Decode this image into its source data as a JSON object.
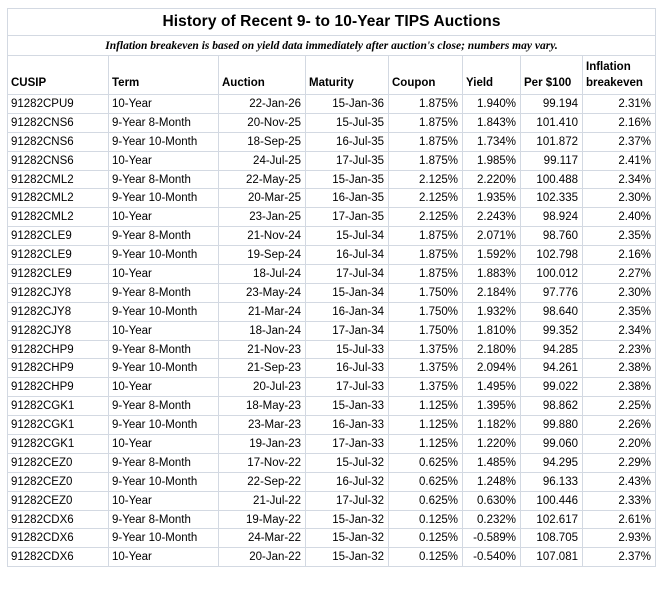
{
  "table": {
    "title": "History of Recent 9- to 10-Year TIPS Auctions",
    "subtitle": "Inflation breakeven is based on yield data immediately after auction's close; numbers may vary.",
    "columns": [
      {
        "key": "cusip",
        "label": "CUSIP",
        "align": "left"
      },
      {
        "key": "term",
        "label": "Term",
        "align": "left"
      },
      {
        "key": "auction",
        "label": "Auction",
        "align": "right"
      },
      {
        "key": "maturity",
        "label": "Maturity",
        "align": "right"
      },
      {
        "key": "coupon",
        "label": "Coupon",
        "align": "right"
      },
      {
        "key": "yield",
        "label": "Yield",
        "align": "right"
      },
      {
        "key": "per100",
        "label": "Per $100",
        "align": "right"
      },
      {
        "key": "breakeven",
        "label": "Inflation breakeven",
        "align": "right"
      }
    ],
    "rows": [
      {
        "cusip": "91282CPU9",
        "term": "10-Year",
        "auction": "22-Jan-26",
        "maturity": "15-Jan-36",
        "coupon": "1.875%",
        "yield": "1.940%",
        "per100": "99.194",
        "breakeven": "2.31%"
      },
      {
        "cusip": "91282CNS6",
        "term": "9-Year 8-Month",
        "auction": "20-Nov-25",
        "maturity": "15-Jul-35",
        "coupon": "1.875%",
        "yield": "1.843%",
        "per100": "101.410",
        "breakeven": "2.16%"
      },
      {
        "cusip": "91282CNS6",
        "term": "9-Year 10-Month",
        "auction": "18-Sep-25",
        "maturity": "16-Jul-35",
        "coupon": "1.875%",
        "yield": "1.734%",
        "per100": "101.872",
        "breakeven": "2.37%"
      },
      {
        "cusip": "91282CNS6",
        "term": "10-Year",
        "auction": "24-Jul-25",
        "maturity": "17-Jul-35",
        "coupon": "1.875%",
        "yield": "1.985%",
        "per100": "99.117",
        "breakeven": "2.41%"
      },
      {
        "cusip": "91282CML2",
        "term": "9-Year 8-Month",
        "auction": "22-May-25",
        "maturity": "15-Jan-35",
        "coupon": "2.125%",
        "yield": "2.220%",
        "per100": "100.488",
        "breakeven": "2.34%"
      },
      {
        "cusip": "91282CML2",
        "term": "9-Year 10-Month",
        "auction": "20-Mar-25",
        "maturity": "16-Jan-35",
        "coupon": "2.125%",
        "yield": "1.935%",
        "per100": "102.335",
        "breakeven": "2.30%"
      },
      {
        "cusip": "91282CML2",
        "term": "10-Year",
        "auction": "23-Jan-25",
        "maturity": "17-Jan-35",
        "coupon": "2.125%",
        "yield": "2.243%",
        "per100": "98.924",
        "breakeven": "2.40%"
      },
      {
        "cusip": "91282CLE9",
        "term": "9-Year 8-Month",
        "auction": "21-Nov-24",
        "maturity": "15-Jul-34",
        "coupon": "1.875%",
        "yield": "2.071%",
        "per100": "98.760",
        "breakeven": "2.35%"
      },
      {
        "cusip": "91282CLE9",
        "term": "9-Year 10-Month",
        "auction": "19-Sep-24",
        "maturity": "16-Jul-34",
        "coupon": "1.875%",
        "yield": "1.592%",
        "per100": "102.798",
        "breakeven": "2.16%"
      },
      {
        "cusip": "91282CLE9",
        "term": "10-Year",
        "auction": "18-Jul-24",
        "maturity": "17-Jul-34",
        "coupon": "1.875%",
        "yield": "1.883%",
        "per100": "100.012",
        "breakeven": "2.27%"
      },
      {
        "cusip": "91282CJY8",
        "term": "9-Year 8-Month",
        "auction": "23-May-24",
        "maturity": "15-Jan-34",
        "coupon": "1.750%",
        "yield": "2.184%",
        "per100": "97.776",
        "breakeven": "2.30%"
      },
      {
        "cusip": "91282CJY8",
        "term": "9-Year 10-Month",
        "auction": "21-Mar-24",
        "maturity": "16-Jan-34",
        "coupon": "1.750%",
        "yield": "1.932%",
        "per100": "98.640",
        "breakeven": "2.35%"
      },
      {
        "cusip": "91282CJY8",
        "term": "10-Year",
        "auction": "18-Jan-24",
        "maturity": "17-Jan-34",
        "coupon": "1.750%",
        "yield": "1.810%",
        "per100": "99.352",
        "breakeven": "2.34%"
      },
      {
        "cusip": "91282CHP9",
        "term": "9-Year 8-Month",
        "auction": "21-Nov-23",
        "maturity": "15-Jul-33",
        "coupon": "1.375%",
        "yield": "2.180%",
        "per100": "94.285",
        "breakeven": "2.23%"
      },
      {
        "cusip": "91282CHP9",
        "term": "9-Year 10-Month",
        "auction": "21-Sep-23",
        "maturity": "16-Jul-33",
        "coupon": "1.375%",
        "yield": "2.094%",
        "per100": "94.261",
        "breakeven": "2.38%"
      },
      {
        "cusip": "91282CHP9",
        "term": "10-Year",
        "auction": "20-Jul-23",
        "maturity": "17-Jul-33",
        "coupon": "1.375%",
        "yield": "1.495%",
        "per100": "99.022",
        "breakeven": "2.38%"
      },
      {
        "cusip": "91282CGK1",
        "term": "9-Year 8-Month",
        "auction": "18-May-23",
        "maturity": "15-Jan-33",
        "coupon": "1.125%",
        "yield": "1.395%",
        "per100": "98.862",
        "breakeven": "2.25%"
      },
      {
        "cusip": "91282CGK1",
        "term": "9-Year 10-Month",
        "auction": "23-Mar-23",
        "maturity": "16-Jan-33",
        "coupon": "1.125%",
        "yield": "1.182%",
        "per100": "99.880",
        "breakeven": "2.26%"
      },
      {
        "cusip": "91282CGK1",
        "term": "10-Year",
        "auction": "19-Jan-23",
        "maturity": "17-Jan-33",
        "coupon": "1.125%",
        "yield": "1.220%",
        "per100": "99.060",
        "breakeven": "2.20%"
      },
      {
        "cusip": "91282CEZ0",
        "term": "9-Year 8-Month",
        "auction": "17-Nov-22",
        "maturity": "15-Jul-32",
        "coupon": "0.625%",
        "yield": "1.485%",
        "per100": "94.295",
        "breakeven": "2.29%"
      },
      {
        "cusip": "91282CEZ0",
        "term": "9-Year 10-Month",
        "auction": "22-Sep-22",
        "maturity": "16-Jul-32",
        "coupon": "0.625%",
        "yield": "1.248%",
        "per100": "96.133",
        "breakeven": "2.43%"
      },
      {
        "cusip": "91282CEZ0",
        "term": "10-Year",
        "auction": "21-Jul-22",
        "maturity": "17-Jul-32",
        "coupon": "0.625%",
        "yield": "0.630%",
        "per100": "100.446",
        "breakeven": "2.33%"
      },
      {
        "cusip": "91282CDX6",
        "term": "9-Year 8-Month",
        "auction": "19-May-22",
        "maturity": "15-Jan-32",
        "coupon": "0.125%",
        "yield": "0.232%",
        "per100": "102.617",
        "breakeven": "2.61%"
      },
      {
        "cusip": "91282CDX6",
        "term": "9-Year 10-Month",
        "auction": "24-Mar-22",
        "maturity": "15-Jan-32",
        "coupon": "0.125%",
        "yield": "-0.589%",
        "per100": "108.705",
        "breakeven": "2.93%"
      },
      {
        "cusip": "91282CDX6",
        "term": "10-Year",
        "auction": "20-Jan-22",
        "maturity": "15-Jan-32",
        "coupon": "0.125%",
        "yield": "-0.540%",
        "per100": "107.081",
        "breakeven": "2.37%"
      }
    ]
  }
}
